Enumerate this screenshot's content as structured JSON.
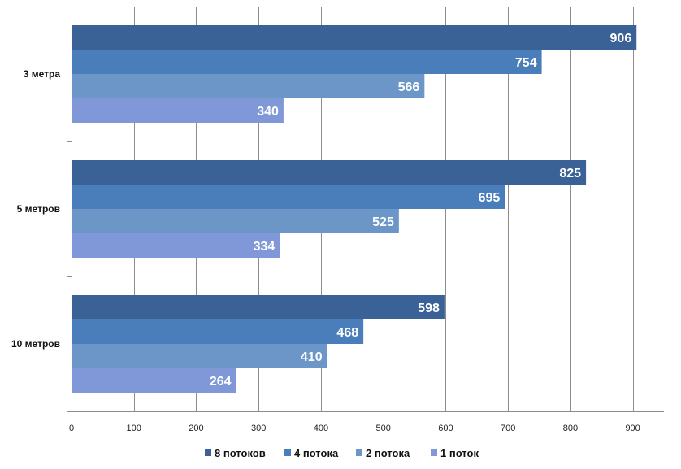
{
  "chart_data": {
    "type": "bar",
    "orientation": "horizontal",
    "categories": [
      "3 метра",
      "5 метров",
      "10 метров"
    ],
    "series": [
      {
        "name": "8 потоков",
        "color": "#3A6296",
        "values": [
          906,
          825,
          598
        ]
      },
      {
        "name": "4 потока",
        "color": "#4A7EBB",
        "values": [
          754,
          695,
          468
        ]
      },
      {
        "name": "2 потока",
        "color": "#6C96C8",
        "values": [
          566,
          525,
          410
        ]
      },
      {
        "name": "1 поток",
        "color": "#8097D8",
        "values": [
          340,
          334,
          264
        ]
      }
    ],
    "xlim": [
      0,
      950
    ],
    "xticks": [
      0,
      100,
      200,
      300,
      400,
      500,
      600,
      700,
      800,
      900
    ],
    "grid": true,
    "data_labels": true,
    "legend_position": "bottom"
  }
}
